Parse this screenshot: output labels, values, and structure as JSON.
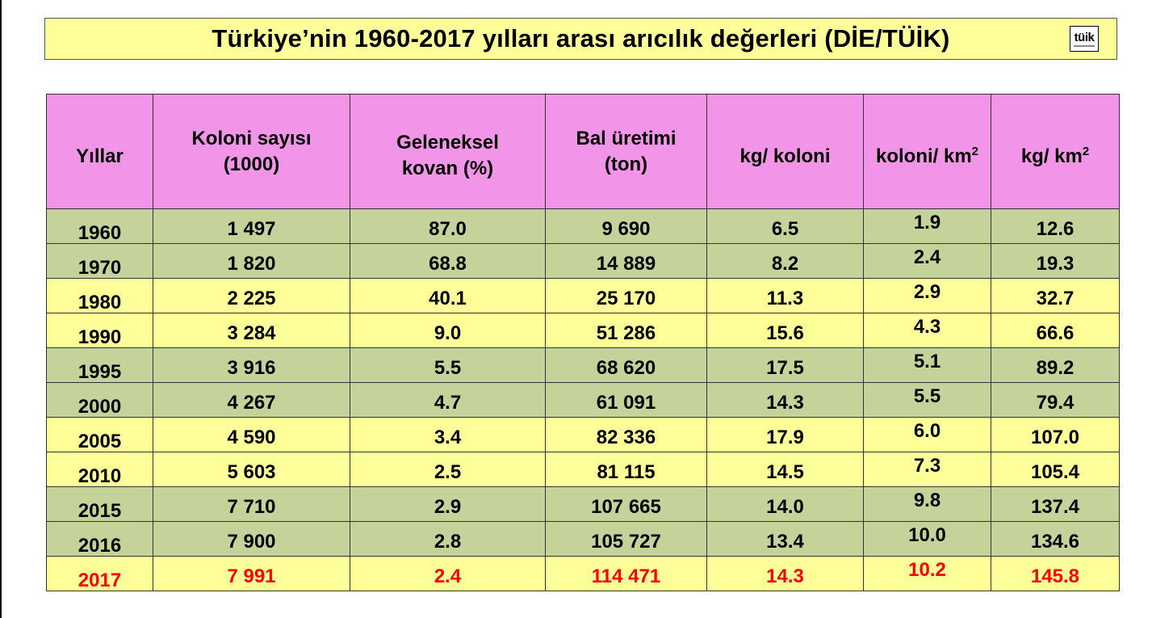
{
  "title": "Türkiye’nin 1960-2017 yılları arası arıcılık değerleri (DİE/TÜİK)",
  "logo_text": "tüik",
  "table": {
    "headers": {
      "years": "Yıllar",
      "colonies_1": "Koloni  sayısı",
      "colonies_2": "(1000)",
      "traditional_1": "Geleneksel",
      "traditional_2": "kovan  (%)",
      "honey_1": "Bal  üretimi",
      "honey_2": "(ton)",
      "kg_colony": "kg/ koloni",
      "colony_km_base": "koloni/ km",
      "colony_km_sup": "2",
      "kg_km_base": "kg/ km",
      "kg_km_sup": "2"
    },
    "rows": [
      {
        "year": "1960",
        "colonies": "1 497",
        "traditional": "87.0",
        "honey": "9 690",
        "kg_colony": "6.5",
        "colony_km": "1.9",
        "kg_km": "12.6",
        "style": "green"
      },
      {
        "year": "1970",
        "colonies": "1 820",
        "traditional": "68.8",
        "honey": "14 889",
        "kg_colony": "8.2",
        "colony_km": "2.4",
        "kg_km": "19.3",
        "style": "green"
      },
      {
        "year": "1980",
        "colonies": "2 225",
        "traditional": "40.1",
        "honey": "25 170",
        "kg_colony": "11.3",
        "colony_km": "2.9",
        "kg_km": "32.7",
        "style": "yellow"
      },
      {
        "year": "1990",
        "colonies": "3 284",
        "traditional": "9.0",
        "honey": "51 286",
        "kg_colony": "15.6",
        "colony_km": "4.3",
        "kg_km": "66.6",
        "style": "yellow"
      },
      {
        "year": "1995",
        "colonies": "3 916",
        "traditional": "5.5",
        "honey": "68 620",
        "kg_colony": "17.5",
        "colony_km": "5.1",
        "kg_km": "89.2",
        "style": "green"
      },
      {
        "year": "2000",
        "colonies": "4 267",
        "traditional": "4.7",
        "honey": "61 091",
        "kg_colony": "14.3",
        "colony_km": "5.5",
        "kg_km": "79.4",
        "style": "green"
      },
      {
        "year": "2005",
        "colonies": "4 590",
        "traditional": "3.4",
        "honey": "82 336",
        "kg_colony": "17.9",
        "colony_km": "6.0",
        "kg_km": "107.0",
        "style": "yellow"
      },
      {
        "year": "2010",
        "colonies": "5 603",
        "traditional": "2.5",
        "honey": "81 115",
        "kg_colony": "14.5",
        "colony_km": "7.3",
        "kg_km": "105.4",
        "style": "yellow"
      },
      {
        "year": "2015",
        "colonies": "7 710",
        "traditional": "2.9",
        "honey": "107 665",
        "kg_colony": "14.0",
        "colony_km": "9.8",
        "kg_km": "137.4",
        "style": "green"
      },
      {
        "year": "2016",
        "colonies": "7 900",
        "traditional": "2.8",
        "honey": "105 727",
        "kg_colony": "13.4",
        "colony_km": "10.0",
        "kg_km": "134.6",
        "style": "green"
      },
      {
        "year": "2017",
        "colonies": "7 991",
        "traditional": "2.4",
        "honey": "114 471",
        "kg_colony": "14.3",
        "colony_km": "10.2",
        "kg_km": "145.8",
        "style": "yellow highlight"
      }
    ]
  },
  "colors": {
    "title_bg": "#ffff99",
    "header_bg": "#f295e8",
    "row_green": "#c4d39a",
    "row_yellow": "#ffff99",
    "highlight_text": "#ff0000"
  }
}
